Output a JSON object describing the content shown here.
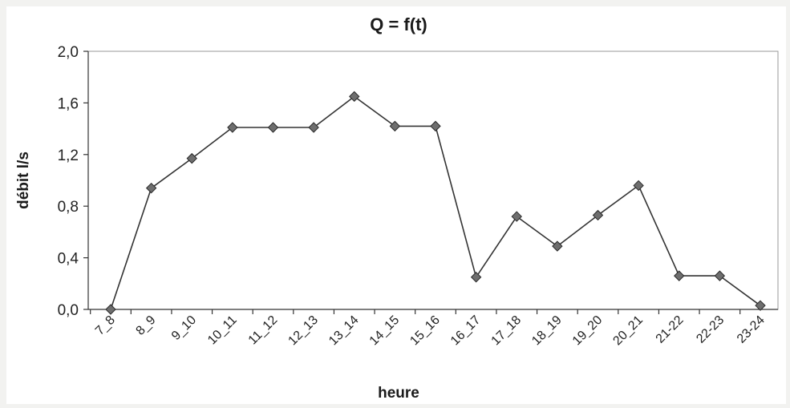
{
  "chart_data": {
    "type": "line",
    "title": "Q = f(t)",
    "xlabel": "heure",
    "ylabel": "débit l/s",
    "categories": [
      "7_8",
      "8_9",
      "9_10",
      "10_11",
      "11_12",
      "12_13",
      "13_14",
      "14_15",
      "15_16",
      "16_17",
      "17_18",
      "18_19",
      "19_20",
      "20_21",
      "21-22",
      "22-23",
      "23-24"
    ],
    "y_tick_labels": [
      "0,0",
      "0,4",
      "0,8",
      "1,2",
      "1,6",
      "2,0"
    ],
    "ylim": [
      0,
      2.0
    ],
    "y_ticks": [
      0,
      0.4,
      0.8,
      1.2,
      1.6,
      2.0
    ],
    "grid": false,
    "legend": "none",
    "series": [
      {
        "values": [
          0.0,
          0.94,
          1.17,
          1.41,
          1.41,
          1.41,
          1.65,
          1.42,
          1.42,
          0.25,
          0.72,
          0.49,
          0.73,
          0.96,
          0.26,
          0.26,
          0.03
        ],
        "marker": "diamond",
        "color": "#333333"
      }
    ]
  },
  "colors": {
    "background": "#f2f2f0",
    "plot_background": "#ffffff",
    "line": "#333333",
    "marker_fill": "#6e6e6e",
    "frame": "#9a9a9a"
  }
}
